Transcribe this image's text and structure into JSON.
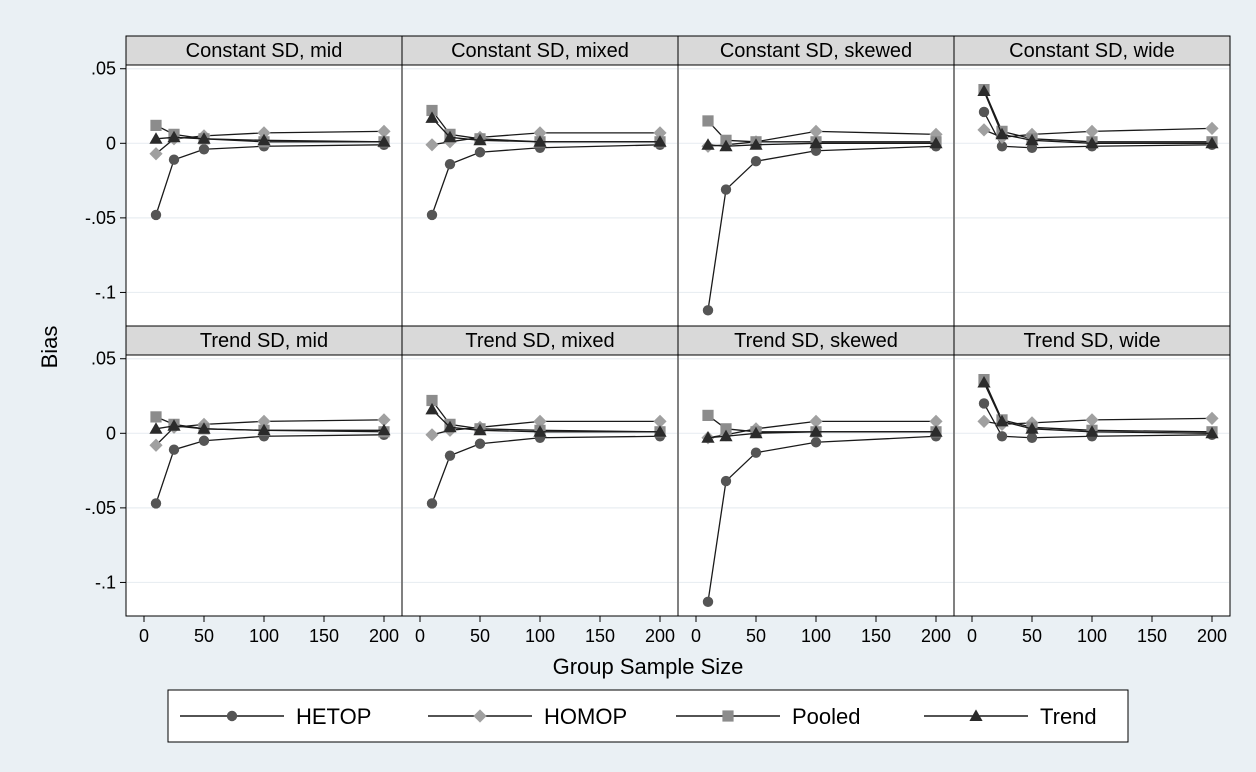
{
  "figure": {
    "y_axis_label": "Bias",
    "x_axis_label": "Group Sample Size",
    "background_color": "#eaf0f4",
    "panel_header_color": "#d9d9d9",
    "gridline_color": "#e9eef2"
  },
  "chart_data": {
    "type": "line",
    "layout": "faceted 2x4 grid, shared axes",
    "x_ticks": [
      0,
      50,
      100,
      150,
      200
    ],
    "y_ticks": [
      0.05,
      0,
      -0.05,
      -0.1
    ],
    "y_tick_labels": [
      ".05",
      "0",
      "-.05",
      "-.1"
    ],
    "x_tick_labels": [
      "0",
      "50",
      "100",
      "150",
      "200"
    ],
    "xlim": [
      -5,
      205
    ],
    "ylim": [
      -0.1225,
      0.0525
    ],
    "grid": true,
    "legend_position": "bottom",
    "x": [
      10,
      25,
      50,
      100,
      200
    ],
    "legend": [
      {
        "name": "HETOP",
        "marker": "circle",
        "color": "#555555"
      },
      {
        "name": "HOMOP",
        "marker": "diamond",
        "color": "#a0a0a0"
      },
      {
        "name": "Pooled",
        "marker": "square",
        "color": "#8c8c8c"
      },
      {
        "name": "Trend",
        "marker": "triangle",
        "color": "#2b2b2b"
      }
    ],
    "panels": [
      {
        "title": "Constant SD, mid",
        "series": [
          {
            "name": "HETOP",
            "values": [
              -0.048,
              -0.011,
              -0.004,
              -0.002,
              -0.001
            ]
          },
          {
            "name": "HOMOP",
            "values": [
              -0.007,
              0.003,
              0.005,
              0.007,
              0.008
            ]
          },
          {
            "name": "Pooled",
            "values": [
              0.012,
              0.006,
              0.003,
              0.001,
              0.001
            ]
          },
          {
            "name": "Trend",
            "values": [
              0.003,
              0.004,
              0.003,
              0.002,
              0.001
            ]
          }
        ]
      },
      {
        "title": "Constant SD, mixed",
        "series": [
          {
            "name": "HETOP",
            "values": [
              -0.048,
              -0.014,
              -0.006,
              -0.003,
              -0.001
            ]
          },
          {
            "name": "HOMOP",
            "values": [
              -0.001,
              0.001,
              0.004,
              0.007,
              0.007
            ]
          },
          {
            "name": "Pooled",
            "values": [
              0.022,
              0.006,
              0.003,
              0.001,
              0.001
            ]
          },
          {
            "name": "Trend",
            "values": [
              0.017,
              0.004,
              0.002,
              0.001,
              0.001
            ]
          }
        ]
      },
      {
        "title": "Constant SD, skewed",
        "series": [
          {
            "name": "HETOP",
            "values": [
              -0.112,
              -0.031,
              -0.012,
              -0.005,
              -0.002
            ]
          },
          {
            "name": "HOMOP",
            "values": [
              -0.002,
              -0.001,
              0.001,
              0.008,
              0.006
            ]
          },
          {
            "name": "Pooled",
            "values": [
              0.015,
              0.002,
              0.001,
              0.001,
              0.001
            ]
          },
          {
            "name": "Trend",
            "values": [
              -0.001,
              -0.002,
              -0.001,
              0.0,
              0.0
            ]
          }
        ]
      },
      {
        "title": "Constant SD, wide",
        "series": [
          {
            "name": "HETOP",
            "values": [
              0.021,
              -0.002,
              -0.003,
              -0.002,
              -0.001
            ]
          },
          {
            "name": "HOMOP",
            "values": [
              0.009,
              0.004,
              0.006,
              0.008,
              0.01
            ]
          },
          {
            "name": "Pooled",
            "values": [
              0.036,
              0.008,
              0.003,
              0.001,
              0.001
            ]
          },
          {
            "name": "Trend",
            "values": [
              0.035,
              0.006,
              0.002,
              0.0,
              0.0
            ]
          }
        ]
      },
      {
        "title": "Trend SD, mid",
        "series": [
          {
            "name": "HETOP",
            "values": [
              -0.047,
              -0.011,
              -0.005,
              -0.002,
              -0.001
            ]
          },
          {
            "name": "HOMOP",
            "values": [
              -0.008,
              0.004,
              0.006,
              0.008,
              0.009
            ]
          },
          {
            "name": "Pooled",
            "values": [
              0.011,
              0.006,
              0.003,
              0.002,
              0.001
            ]
          },
          {
            "name": "Trend",
            "values": [
              0.003,
              0.005,
              0.003,
              0.002,
              0.002
            ]
          }
        ]
      },
      {
        "title": "Trend SD, mixed",
        "series": [
          {
            "name": "HETOP",
            "values": [
              -0.047,
              -0.015,
              -0.007,
              -0.003,
              -0.002
            ]
          },
          {
            "name": "HOMOP",
            "values": [
              -0.001,
              0.002,
              0.004,
              0.008,
              0.008
            ]
          },
          {
            "name": "Pooled",
            "values": [
              0.022,
              0.006,
              0.003,
              0.002,
              0.001
            ]
          },
          {
            "name": "Trend",
            "values": [
              0.016,
              0.004,
              0.002,
              0.001,
              0.001
            ]
          }
        ]
      },
      {
        "title": "Trend SD, skewed",
        "series": [
          {
            "name": "HETOP",
            "values": [
              -0.113,
              -0.032,
              -0.013,
              -0.006,
              -0.002
            ]
          },
          {
            "name": "HOMOP",
            "values": [
              -0.003,
              -0.001,
              0.003,
              0.008,
              0.008
            ]
          },
          {
            "name": "Pooled",
            "values": [
              0.012,
              0.003,
              0.001,
              0.001,
              0.001
            ]
          },
          {
            "name": "Trend",
            "values": [
              -0.003,
              -0.002,
              0.0,
              0.001,
              0.001
            ]
          }
        ]
      },
      {
        "title": "Trend SD, wide",
        "series": [
          {
            "name": "HETOP",
            "values": [
              0.02,
              -0.002,
              -0.003,
              -0.002,
              -0.001
            ]
          },
          {
            "name": "HOMOP",
            "values": [
              0.008,
              0.006,
              0.007,
              0.009,
              0.01
            ]
          },
          {
            "name": "Pooled",
            "values": [
              0.036,
              0.009,
              0.004,
              0.002,
              0.001
            ]
          },
          {
            "name": "Trend",
            "values": [
              0.034,
              0.008,
              0.003,
              0.001,
              0.0
            ]
          }
        ]
      }
    ]
  }
}
